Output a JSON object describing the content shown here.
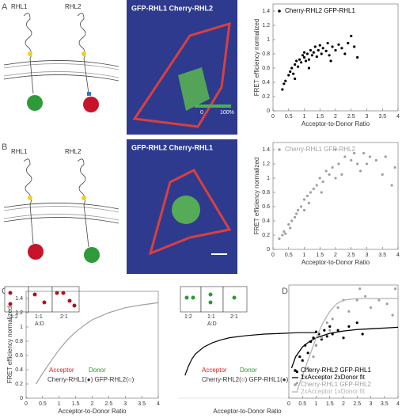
{
  "panel_labels": [
    "A",
    "B",
    "C",
    "D"
  ],
  "schematics": [
    {
      "labels": [
        "RHL1",
        "RHL2"
      ]
    },
    {
      "labels": [
        "RHL1",
        "RHL2"
      ]
    }
  ],
  "images": [
    {
      "label": "GFP-RHL1  Cherry-RHL2",
      "colorbar": [
        "0",
        "100%"
      ]
    },
    {
      "label": "GFP-RHL2  Cherry-RHL1"
    }
  ],
  "insets": [
    {
      "ratios": [
        "1:2",
        "1:1",
        "2:1"
      ],
      "axis_label": "A:D"
    },
    {
      "ratios": [
        "1:2",
        "1:1",
        "2:1"
      ],
      "axis_label": "A:D"
    }
  ],
  "chart_data": [
    {
      "type": "scatter",
      "xlabel": "Acceptor-to-Donor Ratio",
      "ylabel": "FRET efficiency normalized",
      "xlim": [
        0,
        4
      ],
      "ylim": [
        0,
        1.5
      ],
      "xticks": [
        0,
        0.5,
        1,
        1.5,
        2,
        2.5,
        3,
        3.5,
        4
      ],
      "yticks": [
        0,
        0.2,
        0.4,
        0.6,
        0.8,
        1,
        1.2,
        1.4
      ],
      "legend": "upper left",
      "x": [
        0.3,
        0.35,
        0.4,
        0.5,
        0.55,
        0.6,
        0.65,
        0.7,
        0.75,
        0.8,
        0.85,
        0.9,
        0.95,
        1.0,
        1.0,
        1.05,
        1.1,
        1.15,
        1.2,
        1.25,
        1.3,
        1.35,
        1.4,
        1.45,
        1.5,
        1.55,
        1.6,
        1.7,
        1.75,
        1.8,
        1.9,
        2.0,
        2.1,
        2.2,
        2.3,
        2.4,
        2.5,
        2.6,
        2.7,
        1.85,
        0.7,
        1.15
      ],
      "series": [
        {
          "name": "Cherry-RHL2 GFP-RHL1",
          "color": "#000000",
          "values": [
            0.3,
            0.38,
            0.42,
            0.5,
            0.55,
            0.6,
            0.52,
            0.65,
            0.7,
            0.62,
            0.72,
            0.68,
            0.78,
            0.75,
            0.82,
            0.7,
            0.8,
            0.72,
            0.85,
            0.78,
            0.82,
            0.9,
            0.76,
            0.85,
            0.92,
            0.8,
            0.88,
            0.84,
            0.95,
            0.78,
            0.9,
            0.85,
            0.93,
            0.88,
            0.8,
            0.95,
            1.05,
            0.9,
            0.75,
            0.7,
            0.45,
            0.6
          ]
        }
      ]
    },
    {
      "type": "scatter",
      "xlabel": "Acceptor-to-Donor Ratio",
      "ylabel": "FRET efficiency normalized",
      "xlim": [
        0,
        4
      ],
      "ylim": [
        0,
        1.5
      ],
      "xticks": [
        0,
        0.5,
        1,
        1.5,
        2,
        2.5,
        3,
        3.5,
        4
      ],
      "yticks": [
        0,
        0.2,
        0.4,
        0.6,
        0.8,
        1,
        1.2,
        1.4
      ],
      "legend": "upper left",
      "x": [
        0.2,
        0.3,
        0.35,
        0.4,
        0.5,
        0.55,
        0.6,
        0.7,
        0.75,
        0.8,
        0.9,
        1.0,
        1.0,
        1.1,
        1.15,
        1.2,
        1.3,
        1.4,
        1.5,
        1.55,
        1.6,
        1.7,
        1.8,
        1.9,
        2.0,
        2.1,
        2.2,
        2.3,
        2.5,
        2.6,
        2.7,
        2.8,
        2.9,
        3.0,
        3.1,
        3.3,
        3.5,
        3.6,
        3.8,
        3.9,
        2.0
      ],
      "series": [
        {
          "name": "Cherry-RHL1 GFP-RHL2",
          "color": "#a0a0a0",
          "values": [
            0.15,
            0.2,
            0.25,
            0.22,
            0.35,
            0.3,
            0.4,
            0.45,
            0.5,
            0.55,
            0.6,
            0.55,
            0.7,
            0.75,
            0.65,
            0.8,
            0.85,
            0.9,
            1.0,
            0.8,
            0.95,
            1.1,
            1.05,
            1.15,
            1.0,
            1.2,
            1.05,
            1.3,
            1.25,
            1.35,
            1.2,
            1.1,
            1.35,
            1.2,
            1.3,
            1.25,
            1.05,
            1.3,
            0.9,
            1.15,
            1.4
          ]
        }
      ]
    },
    {
      "type": "line",
      "xlabel": "Acceptor-to-Donor Ratio",
      "ylabel": "FRET efficiency normalized",
      "xlim": [
        0,
        4
      ],
      "ylim": [
        0,
        1.5
      ],
      "xticks": [
        0,
        0.5,
        1,
        1.5,
        2,
        2.5,
        3,
        3.5,
        4
      ],
      "yticks": [
        0,
        0.2,
        0.4,
        0.6,
        0.8,
        1,
        1.2,
        1.4
      ],
      "color": "#a0a0a0",
      "x": [
        0.3,
        0.5,
        0.75,
        1,
        1.25,
        1.5,
        1.75,
        2,
        2.5,
        3,
        3.5,
        4
      ],
      "values": [
        0.2,
        0.35,
        0.52,
        0.68,
        0.82,
        0.93,
        1.02,
        1.1,
        1.2,
        1.27,
        1.31,
        1.34
      ],
      "annotations": [
        {
          "text": "Acceptor",
          "color": "#d42020"
        },
        {
          "text": "Donor",
          "color": "#2a9a2a"
        },
        {
          "text": "Cherry-RHL1(●) GFP-RHL2(○)",
          "color": "#333333"
        }
      ]
    },
    {
      "type": "line",
      "xlabel": "Acceptor-to-Donor Ratio",
      "xlim": [
        0,
        4
      ],
      "ylim": [
        0,
        1.5
      ],
      "color": "#000000",
      "x": [
        0.2,
        0.3,
        0.4,
        0.5,
        0.75,
        1,
        1.25,
        1.5,
        2,
        2.5,
        3,
        3.5,
        4
      ],
      "values": [
        0.32,
        0.45,
        0.55,
        0.62,
        0.72,
        0.78,
        0.82,
        0.85,
        0.88,
        0.9,
        0.91,
        0.92,
        0.92
      ],
      "annotations": [
        {
          "text": "Acceptor",
          "color": "#d42020"
        },
        {
          "text": "Donor",
          "color": "#2a9a2a"
        },
        {
          "text": "Cherry-RHL2(○) GFP-RHL1(●)",
          "color": "#333333"
        }
      ]
    },
    {
      "type": "scatter",
      "xlim": [
        0,
        4
      ],
      "ylim": [
        0,
        1.5
      ],
      "xticks": [
        0,
        0.5,
        1,
        1.5,
        2,
        2.5,
        3,
        3.5,
        4
      ],
      "legend": "lower right",
      "series": [
        {
          "name": "Cherry-RHL2 GFP-RHL1",
          "color": "#000000",
          "type": "scatter",
          "x": [
            0.3,
            0.5,
            0.6,
            0.7,
            0.8,
            0.9,
            1.0,
            1.0,
            1.1,
            1.2,
            1.3,
            1.4,
            1.5,
            1.6,
            1.8,
            2.0,
            2.2,
            2.5,
            2.7,
            0.4
          ],
          "values": [
            0.35,
            0.5,
            0.7,
            0.6,
            0.75,
            0.8,
            0.7,
            0.88,
            0.85,
            0.78,
            0.9,
            0.82,
            0.95,
            0.85,
            0.9,
            0.8,
            0.95,
            1.0,
            0.85,
            0.55
          ]
        },
        {
          "name": "1xAcceptor 2xDonor fit",
          "color": "#000000",
          "type": "line",
          "x": [
            0.1,
            0.25,
            0.5,
            0.75,
            1,
            1.5,
            2,
            2.5,
            3,
            3.5,
            4
          ],
          "values": [
            0.4,
            0.55,
            0.68,
            0.75,
            0.8,
            0.86,
            0.89,
            0.91,
            0.92,
            0.93,
            0.94
          ]
        },
        {
          "name": "Cherry-RHL1 GFP-RHL2",
          "color": "#a0a0a0",
          "type": "scatter",
          "x": [
            0.3,
            0.5,
            0.7,
            0.9,
            1.0,
            1.2,
            1.4,
            1.6,
            1.8,
            2.0,
            2.2,
            2.5,
            2.8,
            3.0,
            3.3,
            3.6,
            3.8,
            3.9,
            2.6,
            1.5
          ],
          "values": [
            0.2,
            0.3,
            0.4,
            0.55,
            0.7,
            0.8,
            1.0,
            1.05,
            1.2,
            1.3,
            1.15,
            1.3,
            1.35,
            1.2,
            1.3,
            1.25,
            1.1,
            1.45,
            1.45,
            0.9
          ]
        },
        {
          "name": "2xAcceptor 1xDonor fit",
          "color": "#b4b4b4",
          "type": "line",
          "x": [
            0.3,
            0.5,
            0.75,
            1,
            1.25,
            1.5,
            1.75,
            2,
            2.5,
            3,
            4
          ],
          "values": [
            0.1,
            0.3,
            0.55,
            0.8,
            1.0,
            1.15,
            1.25,
            1.3,
            1.32,
            1.32,
            1.32
          ]
        }
      ]
    }
  ]
}
